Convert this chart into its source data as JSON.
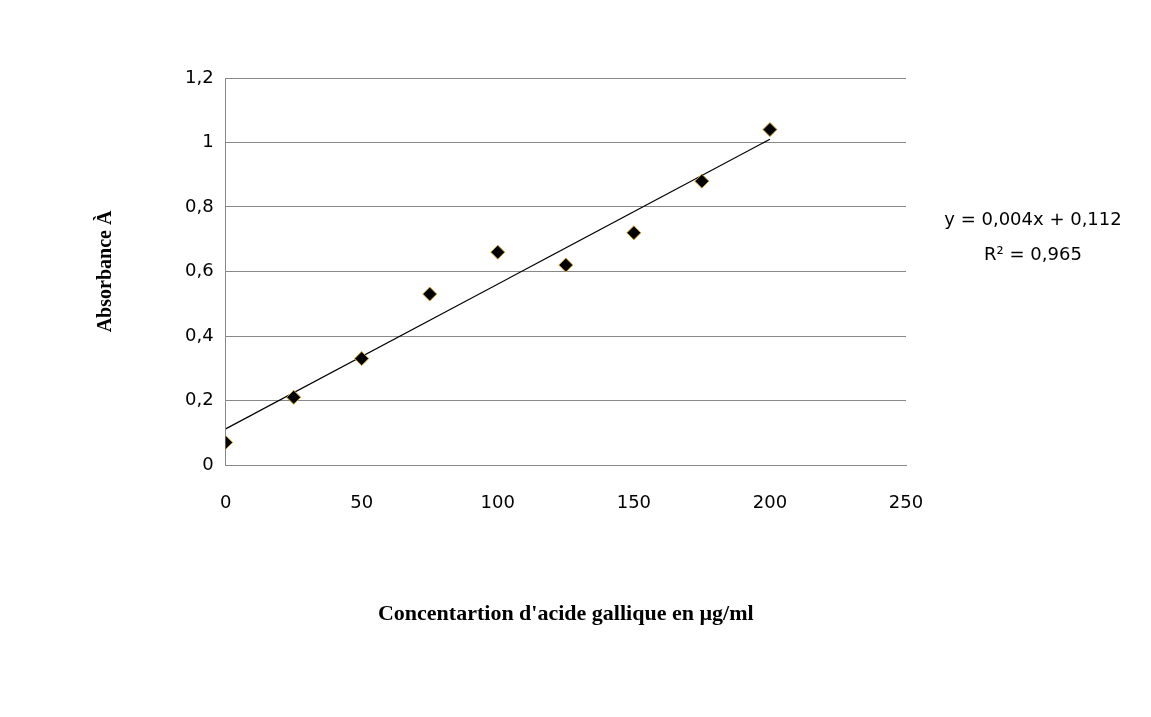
{
  "chart_data": {
    "type": "scatter",
    "xlabel": "Concentartion d'acide gallique en µg/ml",
    "ylabel": "Absorbance À",
    "x": [
      0,
      25,
      50,
      75,
      100,
      125,
      150,
      175,
      200
    ],
    "series": [
      {
        "color": "#000000",
        "values": [
          0.07,
          0.21,
          0.33,
          0.53,
          0.66,
          0.62,
          0.72,
          0.88,
          1.04
        ]
      },
      {
        "type": "line",
        "marker": "none",
        "color": "#000000",
        "x": [
          0,
          200
        ],
        "values": [
          0.112,
          1.01
        ]
      }
    ],
    "xlim": [
      0,
      250
    ],
    "xticks": [
      0,
      50,
      100,
      150,
      200,
      250
    ],
    "ylim": [
      0,
      1.2
    ],
    "yticks": [
      0,
      {
        "value": 0.2,
        "label": "0,2"
      },
      {
        "value": 0.4,
        "label": "0,4"
      },
      {
        "value": 0.6,
        "label": "0,6"
      },
      {
        "value": 0.8,
        "label": "0,8"
      },
      1,
      {
        "value": 1.2,
        "label": "1,2"
      }
    ],
    "grid": "y",
    "legend": false,
    "marker": "diamond",
    "annotations": [
      "y = 0,004x + 0,112",
      "R² = 0,965"
    ]
  }
}
